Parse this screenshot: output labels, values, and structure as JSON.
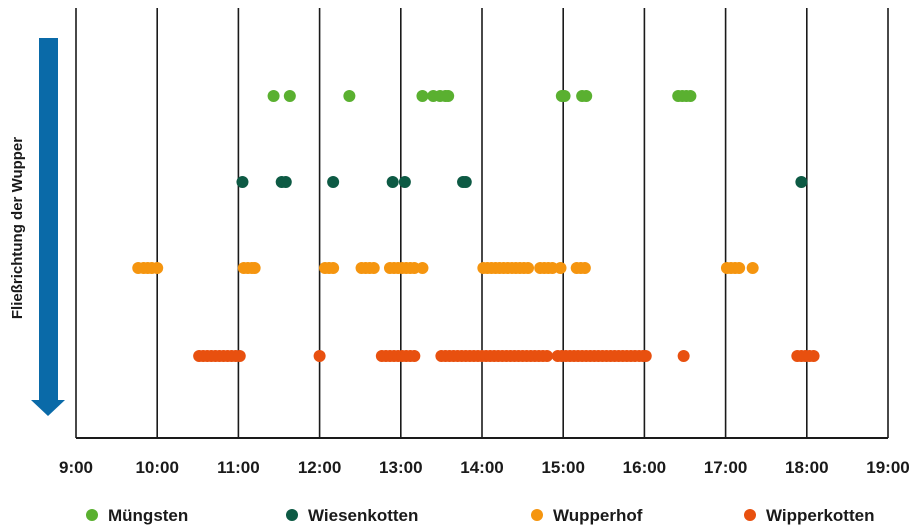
{
  "chart_data": {
    "type": "scatter",
    "ylabel": "Fließrichtung der Wupper",
    "x_ticks": [
      "9:00",
      "10:00",
      "11:00",
      "12:00",
      "13:00",
      "14:00",
      "15:00",
      "16:00",
      "17:00",
      "18:00",
      "19:00"
    ],
    "xlim": [
      "9:00",
      "19:00"
    ],
    "grid": "vertical",
    "legend_position": "bottom",
    "arrow_color": "#0a6aa8",
    "series": [
      {
        "name": "Müngsten",
        "color": "#5ab030",
        "x": [
          "11:26",
          "11:38",
          "12:22",
          "13:16",
          "13:24",
          "13:29",
          "13:33",
          "13:35",
          "14:59",
          "15:01",
          "15:14",
          "15:17",
          "16:25",
          "16:28",
          "16:31",
          "16:34"
        ]
      },
      {
        "name": "Wiesenkotten",
        "color": "#0d5a44",
        "x": [
          "11:03",
          "11:32",
          "11:35",
          "12:10",
          "12:54",
          "13:03",
          "13:46",
          "13:48",
          "17:56"
        ]
      },
      {
        "name": "Wupperhof",
        "color": "#f5950f",
        "x": [
          "9:46",
          "9:50",
          "9:53",
          "9:56",
          "10:00",
          "11:04",
          "11:07",
          "11:10",
          "11:12",
          "12:04",
          "12:07",
          "12:10",
          "12:31",
          "12:34",
          "12:37",
          "12:40",
          "12:52",
          "12:55",
          "12:58",
          "13:01",
          "13:04",
          "13:07",
          "13:10",
          "13:16",
          "14:01",
          "14:04",
          "14:07",
          "14:10",
          "14:13",
          "14:16",
          "14:19",
          "14:22",
          "14:25",
          "14:28",
          "14:31",
          "14:34",
          "14:43",
          "14:46",
          "14:49",
          "14:52",
          "14:58",
          "15:10",
          "15:13",
          "15:16",
          "17:01",
          "17:04",
          "17:07",
          "17:10",
          "17:20"
        ]
      },
      {
        "name": "Wipperkotten",
        "color": "#e8500f",
        "x": [
          "10:31",
          "10:34",
          "10:37",
          "10:40",
          "10:43",
          "10:46",
          "10:49",
          "10:52",
          "10:55",
          "10:58",
          "11:01",
          "12:00",
          "12:46",
          "12:49",
          "12:52",
          "12:55",
          "12:58",
          "13:01",
          "13:04",
          "13:07",
          "13:10",
          "13:30",
          "13:33",
          "13:36",
          "13:39",
          "13:42",
          "13:45",
          "13:48",
          "13:51",
          "13:54",
          "13:57",
          "14:00",
          "14:03",
          "14:06",
          "14:09",
          "14:12",
          "14:15",
          "14:18",
          "14:21",
          "14:24",
          "14:27",
          "14:30",
          "14:33",
          "14:36",
          "14:39",
          "14:42",
          "14:45",
          "14:48",
          "14:56",
          "14:59",
          "15:02",
          "15:05",
          "15:08",
          "15:11",
          "15:14",
          "15:17",
          "15:20",
          "15:23",
          "15:26",
          "15:29",
          "15:32",
          "15:35",
          "15:38",
          "15:41",
          "15:44",
          "15:47",
          "15:50",
          "15:53",
          "15:56",
          "15:59",
          "16:01",
          "16:29",
          "17:53",
          "17:56",
          "17:59",
          "18:02",
          "18:05"
        ]
      }
    ]
  }
}
